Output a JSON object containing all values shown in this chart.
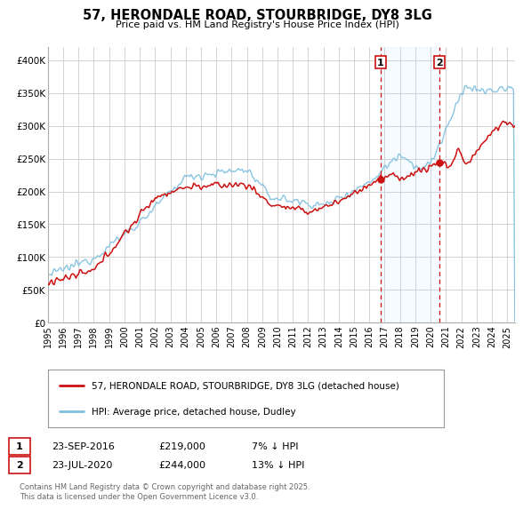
{
  "title": "57, HERONDALE ROAD, STOURBRIDGE, DY8 3LG",
  "subtitle": "Price paid vs. HM Land Registry's House Price Index (HPI)",
  "ylim": [
    0,
    420000
  ],
  "xlim_start": 1995.0,
  "xlim_end": 2025.5,
  "yticks": [
    0,
    50000,
    100000,
    150000,
    200000,
    250000,
    300000,
    350000,
    400000
  ],
  "ytick_labels": [
    "£0",
    "£50K",
    "£100K",
    "£150K",
    "£200K",
    "£250K",
    "£300K",
    "£350K",
    "£400K"
  ],
  "xticks": [
    1995,
    1996,
    1997,
    1998,
    1999,
    2000,
    2001,
    2002,
    2003,
    2004,
    2005,
    2006,
    2007,
    2008,
    2009,
    2010,
    2011,
    2012,
    2013,
    2014,
    2015,
    2016,
    2017,
    2018,
    2019,
    2020,
    2021,
    2022,
    2023,
    2024,
    2025
  ],
  "background_color": "#ffffff",
  "grid_color": "#cccccc",
  "hpi_color": "#7fbfdf",
  "property_color": "#cc1111",
  "marker1_x": 2016.73,
  "marker1_y": 219000,
  "marker2_x": 2020.56,
  "marker2_y": 244000,
  "legend_text_property": "57, HERONDALE ROAD, STOURBRIDGE, DY8 3LG (detached house)",
  "legend_text_hpi": "HPI: Average price, detached house, Dudley",
  "footnote": "Contains HM Land Registry data © Crown copyright and database right 2025.\nThis data is licensed under the Open Government Licence v3.0."
}
